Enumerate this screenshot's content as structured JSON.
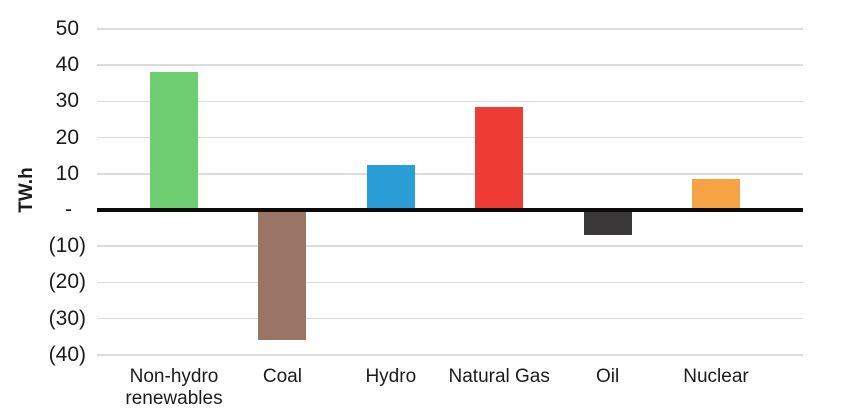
{
  "page": {
    "background": "#ffffff"
  },
  "chart_data": {
    "type": "bar",
    "ylabel": "TW.h",
    "categories": [
      "Non-hydro renewables",
      "Coal",
      "Hydro",
      "Natural Gas",
      "Oil",
      "Nuclear"
    ],
    "values": [
      38,
      -36,
      12.5,
      28.5,
      -7,
      8.5
    ],
    "bar_colors": [
      "#6dcd71",
      "#9a7464",
      "#2b9ed8",
      "#ee3b33",
      "#3a3738",
      "#f6a344"
    ],
    "y_ticks": [
      {
        "value": 50,
        "label": "50"
      },
      {
        "value": 40,
        "label": "40"
      },
      {
        "value": 30,
        "label": "30"
      },
      {
        "value": 20,
        "label": "20"
      },
      {
        "value": 10,
        "label": "10"
      },
      {
        "value": 0,
        "label": "-"
      },
      {
        "value": -10,
        "label": "(10)"
      },
      {
        "value": -20,
        "label": "(20)"
      },
      {
        "value": -30,
        "label": "(30)"
      },
      {
        "value": -40,
        "label": "(40)"
      }
    ],
    "ylim": [
      -40,
      50
    ],
    "grid": true,
    "legend": false,
    "colors": {
      "gridline": "#dcdcdc",
      "zero_line": "#0b0b0b",
      "text": "#1b1b1b",
      "background": "#ffffff"
    }
  }
}
